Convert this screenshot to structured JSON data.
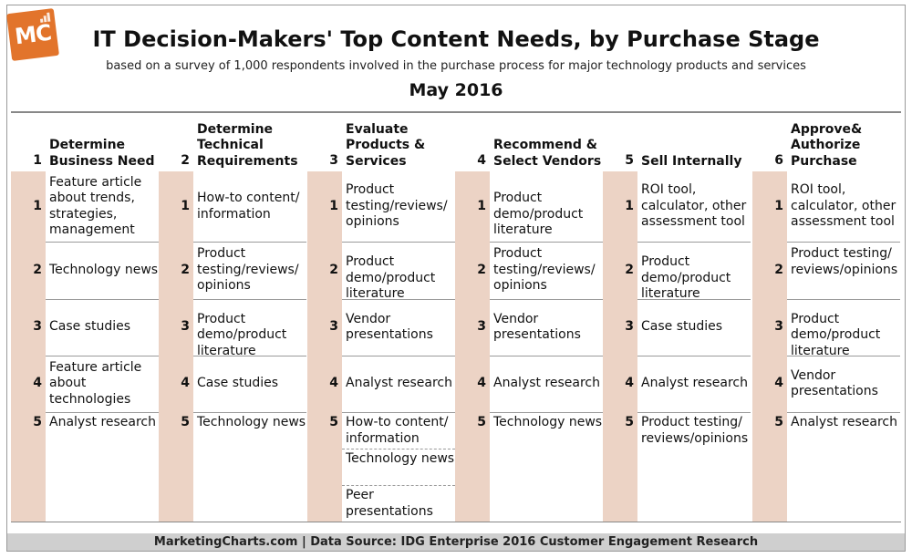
{
  "logo": {
    "text": "MC"
  },
  "title": "IT Decision-Makers' Top Content Needs, by Purchase Stage",
  "subtitle": "based on a survey of 1,000 respondents involved in the purchase process for major technology products and services",
  "date": "May 2016",
  "footer": "MarketingCharts.com | Data Source: IDG Enterprise 2016 Customer Engagement Research",
  "colors": {
    "band": "#ecd3c5",
    "logo": "#e2742b",
    "footer_bg": "#cfcfcf"
  },
  "chart_data": {
    "type": "table",
    "stages": [
      {
        "num": "1",
        "name": "Determine Business Need",
        "items": [
          {
            "rank": "1",
            "text": "Feature article about trends, strategies, management"
          },
          {
            "rank": "2",
            "text": "Technology news"
          },
          {
            "rank": "3",
            "text": "Case studies"
          },
          {
            "rank": "4",
            "text": "Feature article about technologies"
          },
          {
            "rank": "5",
            "text": "Analyst research"
          }
        ]
      },
      {
        "num": "2",
        "name": "Determine Technical Requirements",
        "items": [
          {
            "rank": "1",
            "text": "How-to content/ information"
          },
          {
            "rank": "2",
            "text": "Product testing/reviews/ opinions"
          },
          {
            "rank": "3",
            "text": "Product demo/product literature"
          },
          {
            "rank": "4",
            "text": "Case studies"
          },
          {
            "rank": "5",
            "text": "Technology news"
          }
        ]
      },
      {
        "num": "3",
        "name": "Evaluate Products & Services",
        "items": [
          {
            "rank": "1",
            "text": "Product testing/reviews/ opinions"
          },
          {
            "rank": "2",
            "text": "Product demo/product literature"
          },
          {
            "rank": "3",
            "text": "Vendor presentations"
          },
          {
            "rank": "4",
            "text": "Analyst research"
          },
          {
            "rank": "5",
            "text": "How-to content/ information"
          },
          {
            "rank": "",
            "text": "Technology news"
          },
          {
            "rank": "",
            "text": "Peer presentations"
          }
        ]
      },
      {
        "num": "4",
        "name": "Recommend & Select Vendors",
        "items": [
          {
            "rank": "1",
            "text": "Product demo/product literature"
          },
          {
            "rank": "2",
            "text": "Product testing/reviews/ opinions"
          },
          {
            "rank": "3",
            "text": "Vendor presentations"
          },
          {
            "rank": "4",
            "text": "Analyst research"
          },
          {
            "rank": "5",
            "text": "Technology news"
          }
        ]
      },
      {
        "num": "5",
        "name": "Sell Internally",
        "items": [
          {
            "rank": "1",
            "text": "ROI tool, calculator, other assessment tool"
          },
          {
            "rank": "2",
            "text": "Product demo/product literature"
          },
          {
            "rank": "3",
            "text": "Case studies"
          },
          {
            "rank": "4",
            "text": "Analyst research"
          },
          {
            "rank": "5",
            "text": "Product testing/ reviews/opinions"
          }
        ]
      },
      {
        "num": "6",
        "name": "Approve& Authorize Purchase",
        "items": [
          {
            "rank": "1",
            "text": "ROI tool, calculator, other assessment tool"
          },
          {
            "rank": "2",
            "text": "Product testing/ reviews/opinions"
          },
          {
            "rank": "3",
            "text": "Product demo/product literature"
          },
          {
            "rank": "4",
            "text": "Vendor presentations"
          },
          {
            "rank": "5",
            "text": "Analyst research"
          }
        ]
      }
    ]
  }
}
